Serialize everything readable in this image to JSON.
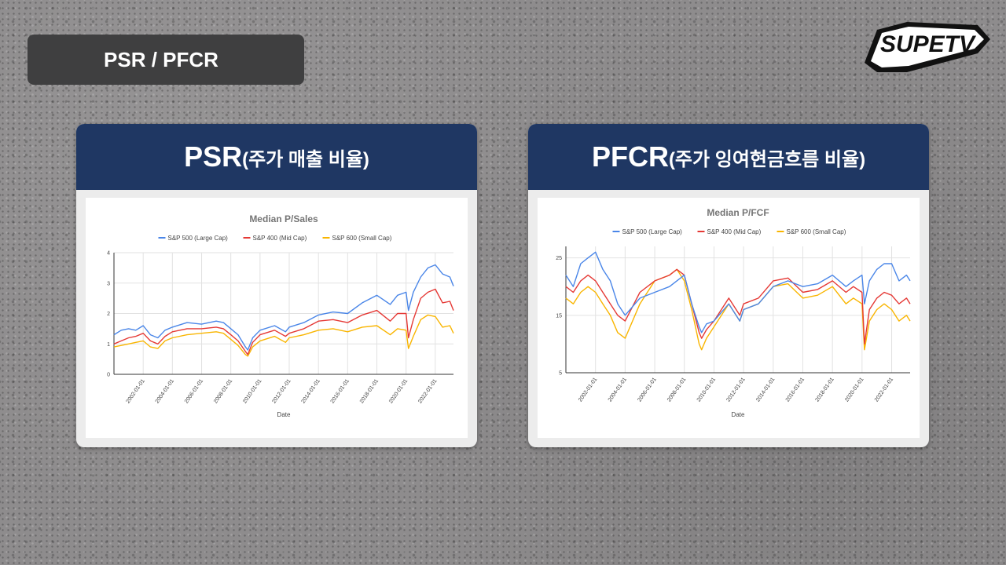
{
  "slide": {
    "title": "PSR / PFCR",
    "logo_text": "SUPETV"
  },
  "panels": [
    {
      "header_main": "PSR",
      "header_sub": "(주가 매출 비율)"
    },
    {
      "header_main": "PFCR",
      "header_sub": "(주가 잉여현금흐름 비율)"
    }
  ],
  "colors": {
    "sp500": "#4a86e8",
    "sp400": "#e53935",
    "sp600": "#f9b500",
    "header": "#1f3763"
  },
  "chart_data": [
    {
      "type": "line",
      "title": "Median P/Sales",
      "xlabel": "Date",
      "ylabel": "",
      "xlim": [
        "2000-01-01",
        "2023-04-01"
      ],
      "ylim": [
        0,
        4
      ],
      "yticks": [
        "0",
        "1",
        "2",
        "3",
        "4"
      ],
      "xticks": [
        "2002-01-01",
        "2004-01-01",
        "2006-01-01",
        "2008-01-01",
        "2010-01-01",
        "2012-01-01",
        "2014-01-01",
        "2016-01-01",
        "2018-01-01",
        "2020-01-01",
        "2022-01-01"
      ],
      "grid": true,
      "legend_position": "top",
      "x": [
        "2000-01-01",
        "2000-07-01",
        "2001-01-01",
        "2001-07-01",
        "2002-01-01",
        "2002-07-01",
        "2003-01-01",
        "2003-07-01",
        "2004-01-01",
        "2005-01-01",
        "2006-01-01",
        "2007-01-01",
        "2007-07-01",
        "2008-01-01",
        "2008-07-01",
        "2009-01-01",
        "2009-03-01",
        "2009-07-01",
        "2010-01-01",
        "2011-01-01",
        "2011-10-01",
        "2012-01-01",
        "2013-01-01",
        "2014-01-01",
        "2015-01-01",
        "2016-01-01",
        "2017-01-01",
        "2018-01-01",
        "2018-12-01",
        "2019-06-01",
        "2020-01-01",
        "2020-03-01",
        "2020-07-01",
        "2021-01-01",
        "2021-07-01",
        "2022-01-01",
        "2022-07-01",
        "2023-01-01",
        "2023-04-01"
      ],
      "series": [
        {
          "name": "S&P 500 (Large Cap)",
          "values": [
            1.3,
            1.45,
            1.5,
            1.45,
            1.6,
            1.3,
            1.2,
            1.45,
            1.55,
            1.7,
            1.65,
            1.75,
            1.7,
            1.5,
            1.3,
            0.9,
            0.8,
            1.2,
            1.45,
            1.6,
            1.4,
            1.55,
            1.7,
            1.95,
            2.05,
            2.0,
            2.35,
            2.6,
            2.3,
            2.6,
            2.7,
            2.1,
            2.7,
            3.2,
            3.5,
            3.6,
            3.3,
            3.2,
            2.9
          ]
        },
        {
          "name": "S&P 400 (Mid Cap)",
          "values": [
            1.0,
            1.1,
            1.2,
            1.25,
            1.35,
            1.1,
            1.0,
            1.25,
            1.4,
            1.5,
            1.5,
            1.55,
            1.5,
            1.3,
            1.1,
            0.75,
            0.65,
            1.05,
            1.3,
            1.45,
            1.25,
            1.35,
            1.5,
            1.75,
            1.8,
            1.7,
            1.95,
            2.1,
            1.75,
            2.0,
            2.0,
            1.2,
            1.8,
            2.5,
            2.7,
            2.8,
            2.35,
            2.4,
            2.1
          ]
        },
        {
          "name": "S&P 600 (Small Cap)",
          "values": [
            0.9,
            0.95,
            1.0,
            1.05,
            1.1,
            0.9,
            0.85,
            1.1,
            1.2,
            1.3,
            1.35,
            1.4,
            1.35,
            1.15,
            0.95,
            0.65,
            0.6,
            0.9,
            1.1,
            1.25,
            1.05,
            1.2,
            1.3,
            1.45,
            1.5,
            1.4,
            1.55,
            1.6,
            1.3,
            1.5,
            1.45,
            0.85,
            1.25,
            1.8,
            1.95,
            1.9,
            1.55,
            1.6,
            1.35
          ]
        }
      ]
    },
    {
      "type": "line",
      "title": "Median P/FCF",
      "xlabel": "Date",
      "ylabel": "",
      "xlim": [
        "2000-01-01",
        "2023-04-01"
      ],
      "ylim": [
        5,
        27
      ],
      "yticks": [
        "5",
        "15",
        "25"
      ],
      "xticks": [
        "2002-01-01",
        "2004-01-01",
        "2006-01-01",
        "2008-01-01",
        "2010-01-01",
        "2012-01-01",
        "2014-01-01",
        "2016-01-01",
        "2018-01-01",
        "2020-01-01",
        "2022-01-01"
      ],
      "grid": true,
      "legend_position": "top",
      "x": [
        "2000-01-01",
        "2000-07-01",
        "2001-01-01",
        "2001-07-01",
        "2002-01-01",
        "2002-07-01",
        "2003-01-01",
        "2003-07-01",
        "2004-01-01",
        "2005-01-01",
        "2006-01-01",
        "2007-01-01",
        "2007-07-01",
        "2008-01-01",
        "2008-07-01",
        "2009-01-01",
        "2009-03-01",
        "2009-07-01",
        "2010-01-01",
        "2011-01-01",
        "2011-10-01",
        "2012-01-01",
        "2013-01-01",
        "2014-01-01",
        "2015-01-01",
        "2016-01-01",
        "2017-01-01",
        "2018-01-01",
        "2018-12-01",
        "2019-06-01",
        "2020-01-01",
        "2020-03-01",
        "2020-07-01",
        "2021-01-01",
        "2021-07-01",
        "2022-01-01",
        "2022-07-01",
        "2023-01-01",
        "2023-04-01"
      ],
      "series": [
        {
          "name": "S&P 500 (Large Cap)",
          "values": [
            22,
            20,
            24,
            25,
            26,
            23,
            21,
            17,
            15,
            18,
            19,
            20,
            21,
            22,
            17,
            13,
            12,
            13.5,
            14,
            17,
            14,
            16,
            17,
            20,
            21,
            20,
            20.5,
            22,
            20,
            21,
            22,
            17,
            21,
            23,
            24,
            24,
            21,
            22,
            21
          ]
        },
        {
          "name": "S&P 400 (Mid Cap)",
          "values": [
            20,
            19,
            21,
            22,
            21,
            19,
            17,
            15,
            14,
            19,
            21,
            22,
            23,
            22,
            17,
            12,
            11,
            12.5,
            14,
            18,
            15,
            17,
            18,
            21,
            21.5,
            19,
            19.5,
            21,
            19,
            20,
            19,
            10,
            16,
            18,
            19,
            18.5,
            17,
            18,
            17
          ]
        },
        {
          "name": "S&P 600 (Small Cap)",
          "values": [
            18,
            17,
            19,
            20,
            19,
            17,
            15,
            12,
            11,
            17,
            21,
            22,
            23,
            21,
            16,
            10,
            9,
            11,
            13,
            17,
            14,
            16,
            17,
            20,
            20.5,
            18,
            18.5,
            20,
            17,
            18,
            17,
            9,
            14,
            16,
            17,
            16,
            14,
            15,
            14
          ]
        }
      ]
    }
  ]
}
